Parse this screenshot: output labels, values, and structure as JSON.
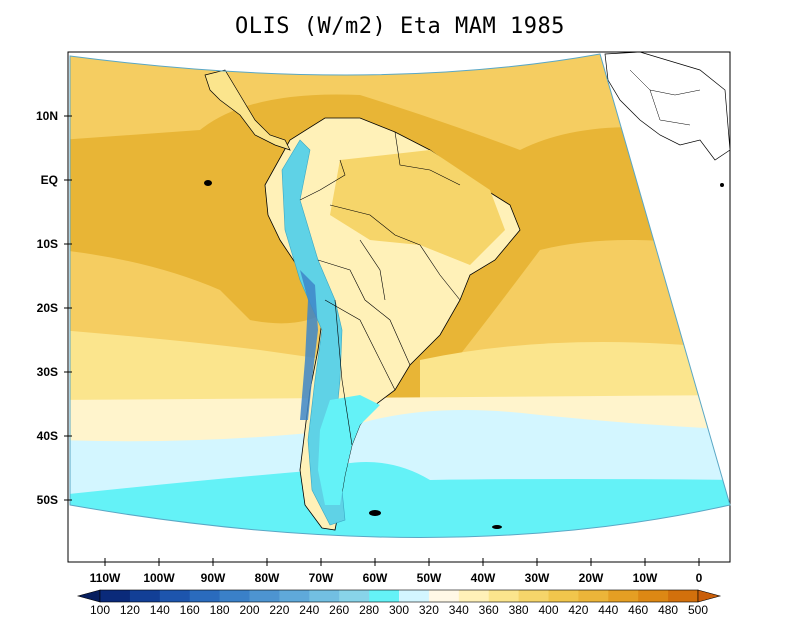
{
  "title": "OLIS (W/m2) Eta MAM 1985",
  "lat_ticks": [
    "10N",
    "EQ",
    "10S",
    "20S",
    "30S",
    "40S",
    "50S"
  ],
  "lon_ticks": [
    "110W",
    "100W",
    "90W",
    "80W",
    "70W",
    "60W",
    "50W",
    "40W",
    "30W",
    "20W",
    "10W",
    "0"
  ],
  "colorbar": {
    "labels": [
      "100",
      "120",
      "140",
      "160",
      "180",
      "200",
      "220",
      "240",
      "260",
      "280",
      "300",
      "320",
      "340",
      "360",
      "380",
      "400",
      "420",
      "440",
      "460",
      "480",
      "500"
    ],
    "colors": [
      "#0a2a7a",
      "#123f96",
      "#1d55ad",
      "#2a6bbd",
      "#3a80c8",
      "#4d94d1",
      "#5fa9da",
      "#72bfe2",
      "#88d4e9",
      "#64f2f7",
      "#d3f6ff",
      "#fff8e6",
      "#fff1b8",
      "#fbe58d",
      "#f6d56a",
      "#f1c64c",
      "#ecb539",
      "#e59f23",
      "#dd8814",
      "#d2700c"
    ],
    "low_color": "#061e5e",
    "high_color": "#c95e0a"
  },
  "fields": {
    "ocean_colors": [
      "#e8b536",
      "#f5cd61",
      "#fbe58d",
      "#fff4cc",
      "#d3f6ff",
      "#64f2f7"
    ],
    "land_color": "#fff1b8",
    "andes_color": "#5fd2e6"
  }
}
